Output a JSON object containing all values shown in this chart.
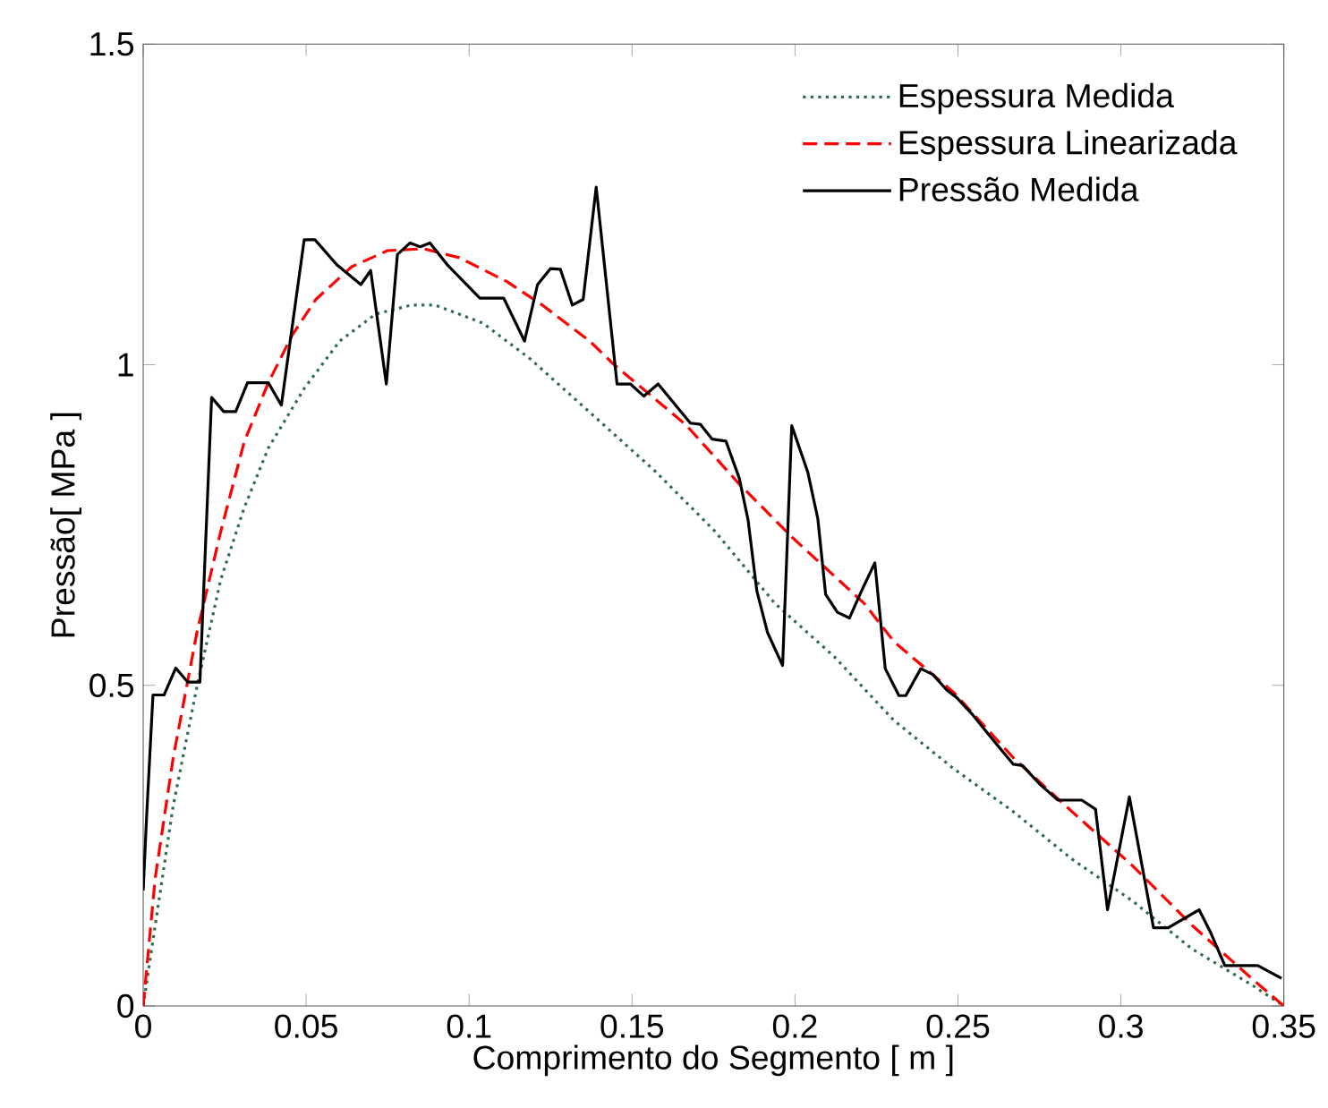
{
  "chart_data": {
    "type": "line",
    "xlabel": "Comprimento do Segmento [ m ]",
    "ylabel": "Pressão[ MPa ]",
    "xlim": [
      0,
      0.35
    ],
    "ylim": [
      0,
      1.5
    ],
    "xticks": [
      0,
      0.05,
      0.1,
      0.15,
      0.2,
      0.25,
      0.3,
      0.35
    ],
    "yticks": [
      0,
      0.5,
      1,
      1.5
    ],
    "grid": false,
    "legend": "top right",
    "marker": "none",
    "series": [
      {
        "name": "Espessura Medida",
        "color": "#2e6b4f",
        "line_style": "dotted",
        "x": [
          0,
          0.0037,
          0.0092,
          0.0165,
          0.0238,
          0.031,
          0.0384,
          0.0494,
          0.0603,
          0.0713,
          0.0823,
          0.0896,
          0.1042,
          0.1188,
          0.137,
          0.1573,
          0.1755,
          0.1938,
          0.212,
          0.2304,
          0.2487,
          0.267,
          0.285,
          0.3035,
          0.3218,
          0.3401,
          0.35
        ],
        "values": [
          0,
          0.126,
          0.312,
          0.498,
          0.665,
          0.777,
          0.87,
          0.963,
          1.037,
          1.079,
          1.093,
          1.093,
          1.065,
          1.009,
          0.926,
          0.833,
          0.74,
          0.628,
          0.545,
          0.445,
          0.37,
          0.303,
          0.229,
          0.164,
          0.089,
          0.033,
          0
        ]
      },
      {
        "name": "Espessura Linearizada",
        "color": "#ff0000",
        "line_style": "dashed",
        "x": [
          0,
          0.0037,
          0.0092,
          0.0165,
          0.0238,
          0.031,
          0.0384,
          0.0457,
          0.053,
          0.064,
          0.075,
          0.086,
          0.097,
          0.1115,
          0.1225,
          0.137,
          0.1445,
          0.1664,
          0.1829,
          0.1993,
          0.2212,
          0.2304,
          0.2487,
          0.267,
          0.285,
          0.3035,
          0.3218,
          0.3401,
          0.35
        ],
        "values": [
          0,
          0.2,
          0.387,
          0.583,
          0.74,
          0.88,
          0.972,
          1.046,
          1.102,
          1.153,
          1.178,
          1.181,
          1.167,
          1.13,
          1.093,
          1.037,
          1.0,
          0.907,
          0.814,
          0.73,
          0.628,
          0.568,
          0.489,
          0.387,
          0.303,
          0.219,
          0.126,
          0.043,
          0
        ]
      },
      {
        "name": "Pressão Medida",
        "color": "#000000",
        "line_style": "solid",
        "x": [
          0,
          0.001,
          0.003,
          0.0064,
          0.01,
          0.0137,
          0.0174,
          0.021,
          0.0247,
          0.0284,
          0.032,
          0.0384,
          0.0424,
          0.0494,
          0.0527,
          0.0594,
          0.0668,
          0.0698,
          0.0746,
          0.078,
          0.0819,
          0.085,
          0.088,
          0.0933,
          0.1033,
          0.1106,
          0.117,
          0.121,
          0.125,
          0.128,
          0.1317,
          0.135,
          0.139,
          0.1454,
          0.1495,
          0.1536,
          0.158,
          0.1679,
          0.171,
          0.1746,
          0.1788,
          0.1829,
          0.1856,
          0.1883,
          0.1916,
          0.1962,
          0.199,
          0.2039,
          0.207,
          0.2094,
          0.213,
          0.2167,
          0.2204,
          0.2245,
          0.2277,
          0.2319,
          0.234,
          0.2386,
          0.2423,
          0.2465,
          0.2496,
          0.2542,
          0.2606,
          0.267,
          0.2698,
          0.2753,
          0.2807,
          0.288,
          0.2922,
          0.2959,
          0.3026,
          0.31,
          0.3145,
          0.324,
          0.3273,
          0.3319,
          0.342,
          0.3493
        ],
        "values": [
          0.18,
          0.29,
          0.485,
          0.485,
          0.527,
          0.505,
          0.505,
          0.949,
          0.927,
          0.927,
          0.972,
          0.972,
          0.937,
          1.195,
          1.195,
          1.156,
          1.125,
          1.147,
          0.97,
          1.172,
          1.19,
          1.184,
          1.19,
          1.156,
          1.104,
          1.104,
          1.037,
          1.125,
          1.15,
          1.149,
          1.093,
          1.102,
          1.277,
          0.97,
          0.97,
          0.951,
          0.97,
          0.909,
          0.907,
          0.884,
          0.881,
          0.823,
          0.758,
          0.647,
          0.582,
          0.531,
          0.905,
          0.833,
          0.76,
          0.642,
          0.614,
          0.605,
          0.647,
          0.691,
          0.526,
          0.484,
          0.484,
          0.526,
          0.517,
          0.493,
          0.481,
          0.456,
          0.416,
          0.377,
          0.375,
          0.345,
          0.321,
          0.321,
          0.307,
          0.15,
          0.326,
          0.122,
          0.122,
          0.15,
          0.117,
          0.063,
          0.063,
          0.043
        ]
      }
    ]
  }
}
